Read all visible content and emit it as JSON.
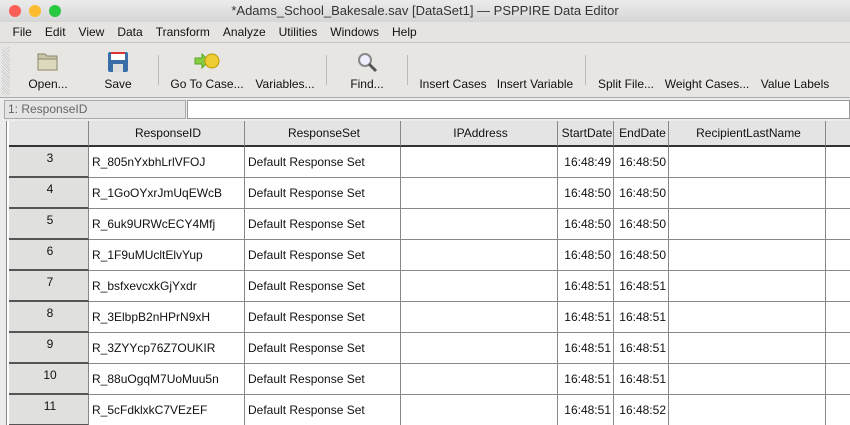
{
  "window": {
    "title": "*Adams_School_Bakesale.sav [DataSet1] — PSPPIRE Data Editor"
  },
  "menu": [
    "File",
    "Edit",
    "View",
    "Data",
    "Transform",
    "Analyze",
    "Utilities",
    "Windows",
    "Help"
  ],
  "toolbar": {
    "open": "Open...",
    "save": "Save",
    "goto": "Go To Case...",
    "variables": "Variables...",
    "find": "Find...",
    "insert_cases": "Insert Cases",
    "insert_variable": "Insert Variable",
    "split": "Split File...",
    "weight": "Weight Cases...",
    "value_labels": "Value Labels"
  },
  "ref": {
    "name": "1: ResponseID",
    "value": ""
  },
  "columns": [
    "ResponseID",
    "ResponseSet",
    "IPAddress",
    "StartDate",
    "EndDate",
    "RecipientLastName",
    ""
  ],
  "rows": [
    {
      "n": "3",
      "id": "R_805nYxbhLrlVFOJ",
      "set": "Default Response Set",
      "start": "16:48:49",
      "end": "16:48:50"
    },
    {
      "n": "4",
      "id": "R_1GoOYxrJmUqEWcB",
      "set": "Default Response Set",
      "start": "16:48:50",
      "end": "16:48:50"
    },
    {
      "n": "5",
      "id": "R_6uk9URWcECY4Mfj",
      "set": "Default Response Set",
      "start": "16:48:50",
      "end": "16:48:50"
    },
    {
      "n": "6",
      "id": "R_1F9uMUcltElvYup",
      "set": "Default Response Set",
      "start": "16:48:50",
      "end": "16:48:50"
    },
    {
      "n": "7",
      "id": "R_bsfxevcxkGjYxdr",
      "set": "Default Response Set",
      "start": "16:48:51",
      "end": "16:48:51"
    },
    {
      "n": "8",
      "id": "R_3ElbpB2nHPrN9xH",
      "set": "Default Response Set",
      "start": "16:48:51",
      "end": "16:48:51"
    },
    {
      "n": "9",
      "id": "R_3ZYYcp76Z7OUKIR",
      "set": "Default Response Set",
      "start": "16:48:51",
      "end": "16:48:51"
    },
    {
      "n": "10",
      "id": "R_88uOgqM7UoMuu5n",
      "set": "Default Response Set",
      "start": "16:48:51",
      "end": "16:48:51"
    },
    {
      "n": "11",
      "id": "R_5cFdklxkC7VEzEF",
      "set": "Default Response Set",
      "start": "16:48:51",
      "end": "16:48:52"
    }
  ]
}
